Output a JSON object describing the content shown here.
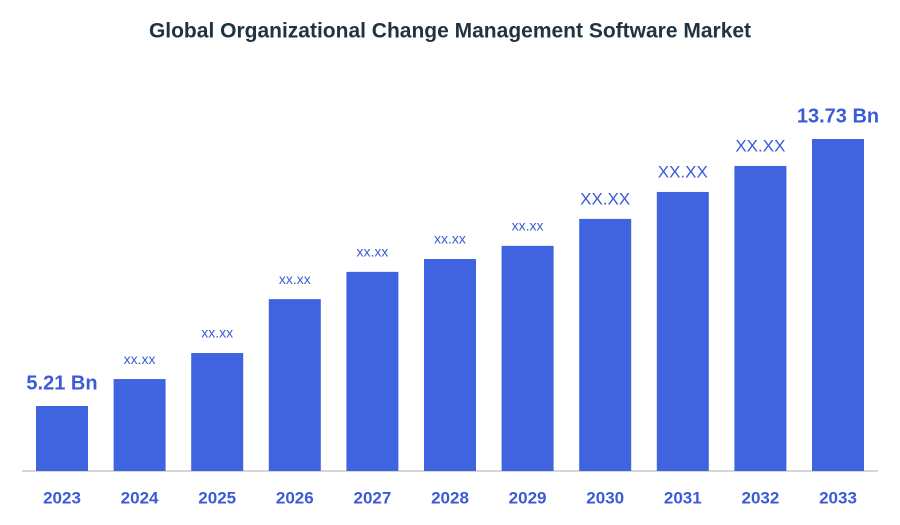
{
  "chart_data": {
    "type": "bar",
    "title": "Global Organizational Change Management Software Market",
    "categories": [
      "2023",
      "2024",
      "2025",
      "2026",
      "2027",
      "2028",
      "2029",
      "2030",
      "2031",
      "2032",
      "2033"
    ],
    "values": [
      5.21,
      6.07,
      6.9,
      8.62,
      9.49,
      9.9,
      10.32,
      11.18,
      12.04,
      12.87,
      13.73
    ],
    "value_labels": [
      "5.21 Bn",
      "xx.xx",
      "xx.xx",
      "xx.xx",
      "xx.xx",
      "xx.xx",
      "xx.xx",
      "XX.XX",
      "XX.XX",
      "XX.XX",
      "13.73 Bn"
    ],
    "color": "#4063df"
  }
}
